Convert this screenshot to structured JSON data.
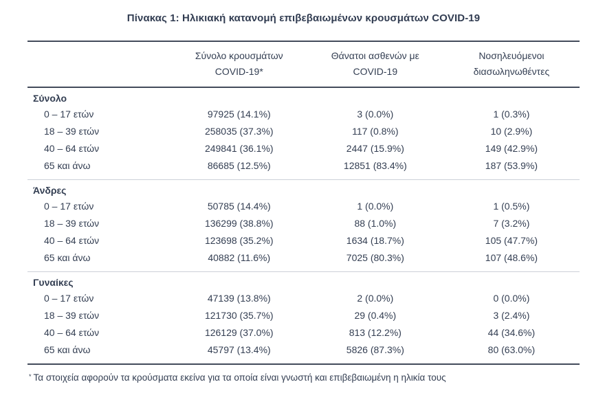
{
  "title": "Πίνακας 1: Ηλικιακή κατανομή επιβεβαιωμένων κρουσμάτων COVID-19",
  "table": {
    "columns": [
      {
        "line1": "Σύνολο κρουσμάτων",
        "line2": "COVID-19*"
      },
      {
        "line1": "Θάνατοι ασθενών με",
        "line2": "COVID-19"
      },
      {
        "line1": "Νοσηλευόμενοι",
        "line2": "διασωληνωθέντες"
      }
    ],
    "sections": [
      {
        "name": "Σύνολο",
        "rows": [
          {
            "label": "0 – 17 ετών",
            "cases": "97925 (14.1%)",
            "deaths": "3 (0.0%)",
            "intubated": "1 (0.3%)"
          },
          {
            "label": "18 – 39 ετών",
            "cases": "258035 (37.3%)",
            "deaths": "117 (0.8%)",
            "intubated": "10 (2.9%)"
          },
          {
            "label": "40 – 64 ετών",
            "cases": "249841 (36.1%)",
            "deaths": "2447 (15.9%)",
            "intubated": "149 (42.9%)"
          },
          {
            "label": "65 και άνω",
            "cases": "86685 (12.5%)",
            "deaths": "12851 (83.4%)",
            "intubated": "187 (53.9%)"
          }
        ]
      },
      {
        "name": "Άνδρες",
        "rows": [
          {
            "label": "0 – 17 ετών",
            "cases": "50785 (14.4%)",
            "deaths": "1 (0.0%)",
            "intubated": "1 (0.5%)"
          },
          {
            "label": "18 – 39 ετών",
            "cases": "136299 (38.8%)",
            "deaths": "88 (1.0%)",
            "intubated": "7 (3.2%)"
          },
          {
            "label": "40 – 64 ετών",
            "cases": "123698 (35.2%)",
            "deaths": "1634 (18.7%)",
            "intubated": "105 (47.7%)"
          },
          {
            "label": "65 και άνω",
            "cases": "40882 (11.6%)",
            "deaths": "7025 (80.3%)",
            "intubated": "107 (48.6%)"
          }
        ]
      },
      {
        "name": "Γυναίκες",
        "rows": [
          {
            "label": "0 – 17 ετών",
            "cases": "47139 (13.8%)",
            "deaths": "2 (0.0%)",
            "intubated": "0 (0.0%)"
          },
          {
            "label": "18 – 39 ετών",
            "cases": "121730 (35.7%)",
            "deaths": "29 (0.4%)",
            "intubated": "3 (2.4%)"
          },
          {
            "label": "40 – 64 ετών",
            "cases": "126129 (37.0%)",
            "deaths": "813 (12.2%)",
            "intubated": "44 (34.6%)"
          },
          {
            "label": "65 και άνω",
            "cases": "45797 (13.4%)",
            "deaths": "5826 (87.3%)",
            "intubated": "80 (63.0%)"
          }
        ]
      }
    ]
  },
  "footnote": {
    "marker": "*",
    "text": "Τα στοιχεία αφορούν τα κρούσματα εκείνα για τα οποία είναι γνωστή και επιβεβαιωμένη η ηλικία τους"
  },
  "colors": {
    "text": "#333e52",
    "rule_dark": "#424a5a",
    "rule_light": "#ccd0d8"
  }
}
